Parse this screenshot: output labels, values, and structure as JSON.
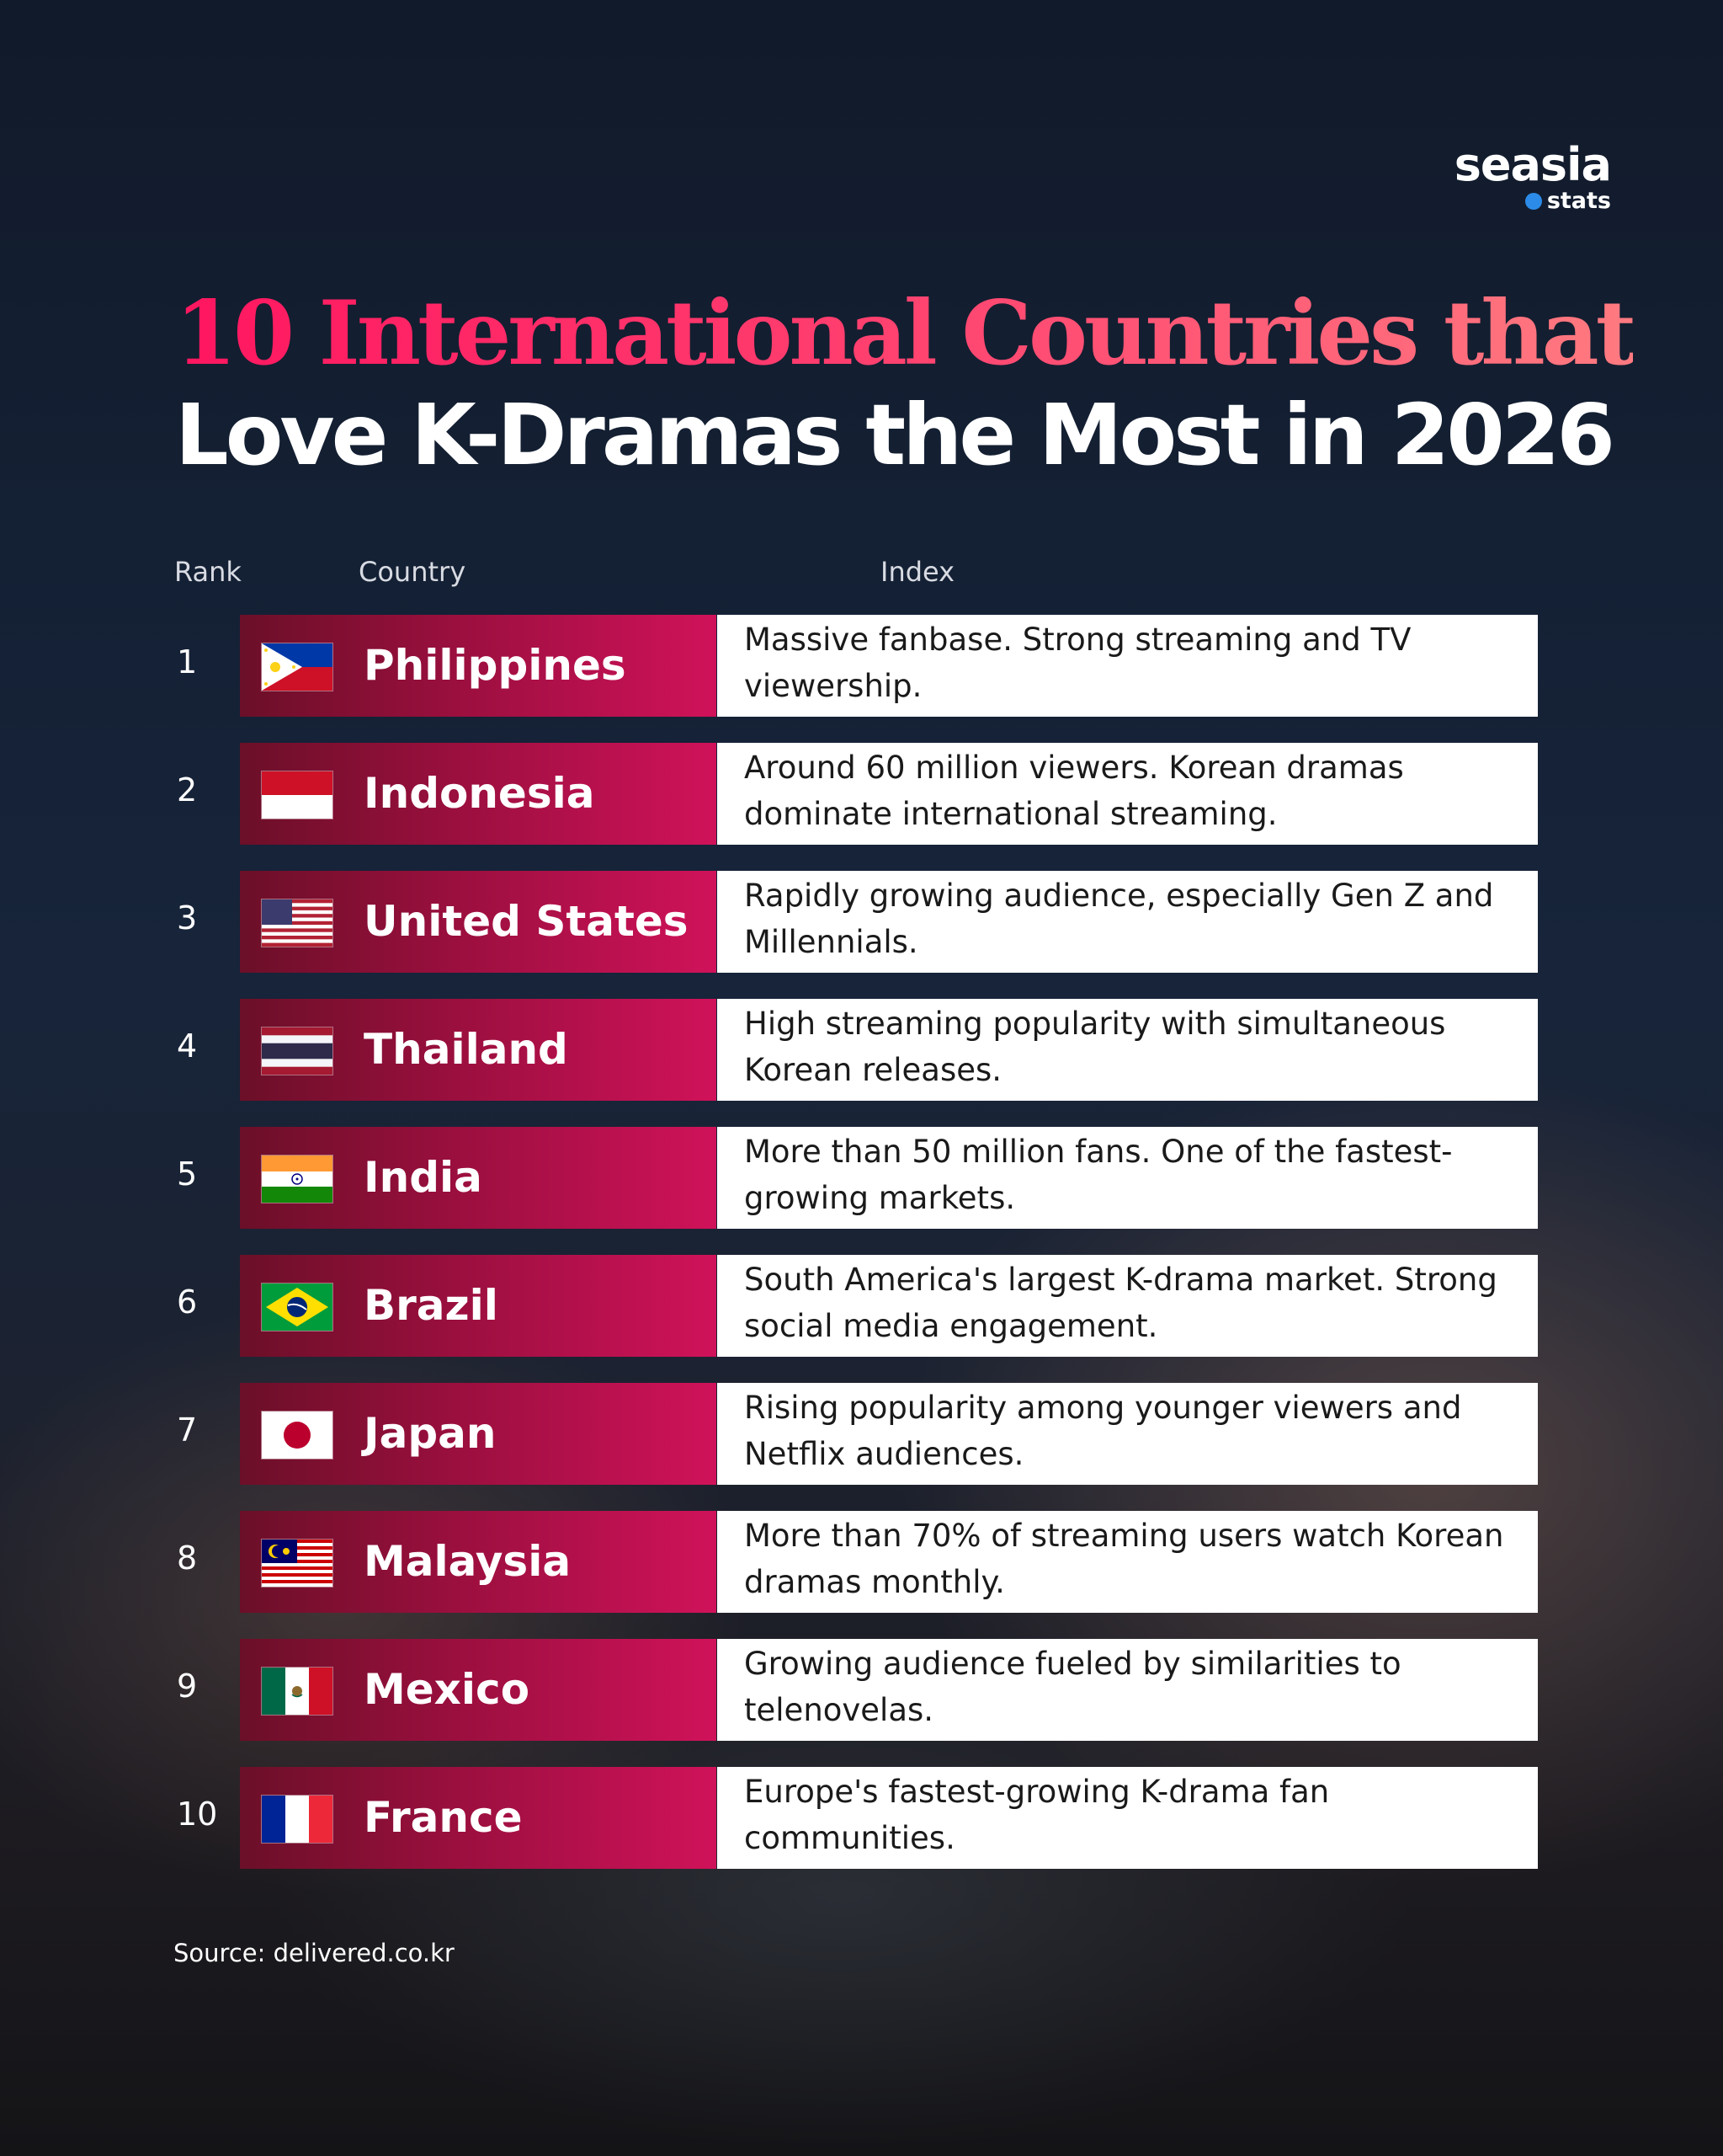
{
  "brand": {
    "name": "seasia",
    "sub": "stats"
  },
  "title": {
    "line1": "10 International Countries that",
    "line2": "Love K-Dramas the Most in 2026"
  },
  "columns": {
    "rank": "Rank",
    "country": "Country",
    "index": "Index"
  },
  "colors": {
    "title_gradient_start": "#ff1660",
    "title_gradient_end": "#ff7a80",
    "row_gradient_start": "#6b0f28",
    "row_gradient_end": "#d0125a",
    "background": "#142034"
  },
  "rows": [
    {
      "rank": "1",
      "country": "Philippines",
      "flag": "philippines-flag-icon",
      "index": "Massive fanbase. Strong streaming and TV viewership."
    },
    {
      "rank": "2",
      "country": "Indonesia",
      "flag": "indonesia-flag-icon",
      "index": "Around 60 million viewers. Korean dramas dominate international streaming."
    },
    {
      "rank": "3",
      "country": "United States",
      "flag": "united-states-flag-icon",
      "index": "Rapidly growing audience, especially Gen Z and Millennials."
    },
    {
      "rank": "4",
      "country": "Thailand",
      "flag": "thailand-flag-icon",
      "index": "High streaming popularity with simultaneous Korean releases."
    },
    {
      "rank": "5",
      "country": "India",
      "flag": "india-flag-icon",
      "index": "More than 50 million fans. One of the fastest-growing markets."
    },
    {
      "rank": "6",
      "country": "Brazil",
      "flag": "brazil-flag-icon",
      "index": "South America's largest K-drama market. Strong social media engagement."
    },
    {
      "rank": "7",
      "country": "Japan",
      "flag": "japan-flag-icon",
      "index": "Rising popularity among younger viewers and Netflix audiences."
    },
    {
      "rank": "8",
      "country": "Malaysia",
      "flag": "malaysia-flag-icon",
      "index": "More than 70% of streaming users watch Korean dramas monthly."
    },
    {
      "rank": "9",
      "country": "Mexico",
      "flag": "mexico-flag-icon",
      "index": "Growing audience fueled by similarities to telenovelas."
    },
    {
      "rank": "10",
      "country": "France",
      "flag": "france-flag-icon",
      "index": "Europe's fastest-growing K-drama fan communities."
    }
  ],
  "source": "Source: delivered.co.kr"
}
